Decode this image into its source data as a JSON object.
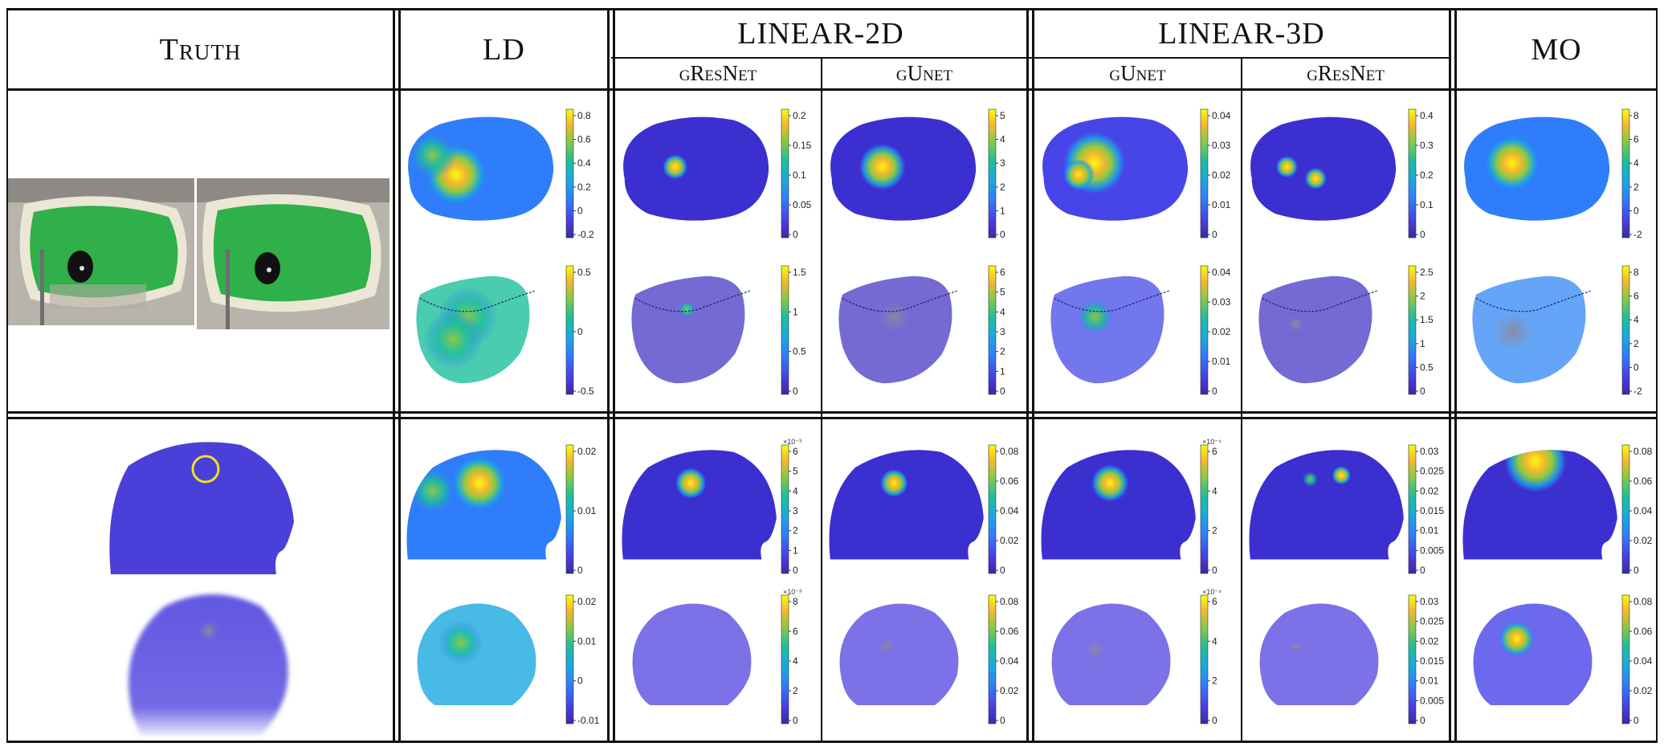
{
  "header": {
    "truth": "Truth",
    "ld": "LD",
    "linear2d": "LINEAR-2D",
    "linear3d": "LINEAR-3D",
    "mo": "MO",
    "sub_l2d_1": "gResNet",
    "sub_l2d_2": "gUnet",
    "sub_l3d_1": "gUnet",
    "sub_l3d_2": "gResNet"
  },
  "colors": {
    "cmap": [
      "#3e26a8",
      "#4744e8",
      "#2f7dfa",
      "#1aa9e0",
      "#1dbf9b",
      "#8bc944",
      "#f5b82d",
      "#f9fb0e"
    ],
    "background_blue": "#4a3fd8",
    "phantom_green": "#2fb04a",
    "target_ring": "#f2e21a"
  },
  "panels": [
    {
      "id": "r1a-ld",
      "ticks": [
        "0.8",
        "0.6",
        "0.4",
        "0.2",
        "0",
        "-0.2"
      ],
      "exp": ""
    },
    {
      "id": "r1b-ld",
      "ticks": [
        "0.5",
        "0",
        "-0.5"
      ],
      "exp": ""
    },
    {
      "id": "r1a-l2d-gresnet",
      "ticks": [
        "0.2",
        "0.15",
        "0.1",
        "0.05",
        "0"
      ],
      "exp": ""
    },
    {
      "id": "r1b-l2d-gresnet",
      "ticks": [
        "1.5",
        "1",
        "0.5",
        "0"
      ],
      "exp": ""
    },
    {
      "id": "r1a-l2d-gunet",
      "ticks": [
        "5",
        "4",
        "3",
        "2",
        "1",
        "0"
      ],
      "exp": ""
    },
    {
      "id": "r1b-l2d-gunet",
      "ticks": [
        "6",
        "5",
        "4",
        "3",
        "2",
        "1",
        "0"
      ],
      "exp": ""
    },
    {
      "id": "r1a-l3d-gunet",
      "ticks": [
        "0.04",
        "0.03",
        "0.02",
        "0.01",
        "0"
      ],
      "exp": ""
    },
    {
      "id": "r1b-l3d-gunet",
      "ticks": [
        "0.04",
        "0.03",
        "0.02",
        "0.01",
        "0"
      ],
      "exp": ""
    },
    {
      "id": "r1a-l3d-gresnet",
      "ticks": [
        "0.4",
        "0.3",
        "0.2",
        "0.1",
        "0"
      ],
      "exp": ""
    },
    {
      "id": "r1b-l3d-gresnet",
      "ticks": [
        "2.5",
        "2",
        "1.5",
        "1",
        "0.5",
        "0"
      ],
      "exp": ""
    },
    {
      "id": "r1a-mo",
      "ticks": [
        "8",
        "6",
        "4",
        "2",
        "0",
        "-2"
      ],
      "exp": ""
    },
    {
      "id": "r1b-mo",
      "ticks": [
        "8",
        "6",
        "4",
        "2",
        "0",
        "-2"
      ],
      "exp": ""
    },
    {
      "id": "r2a-ld",
      "ticks": [
        "0.02",
        "0.01",
        "0"
      ],
      "exp": ""
    },
    {
      "id": "r2b-ld",
      "ticks": [
        "0.02",
        "0.01",
        "0",
        "-0.01"
      ],
      "exp": ""
    },
    {
      "id": "r2a-l2d-gresnet",
      "ticks": [
        "6",
        "5",
        "4",
        "3",
        "2",
        "1",
        "0"
      ],
      "exp": "×10⁻³"
    },
    {
      "id": "r2b-l2d-gresnet",
      "ticks": [
        "8",
        "6",
        "4",
        "2",
        "0"
      ],
      "exp": "×10⁻³"
    },
    {
      "id": "r2a-l2d-gunet",
      "ticks": [
        "0.08",
        "0.06",
        "0.04",
        "0.02",
        "0"
      ],
      "exp": ""
    },
    {
      "id": "r2b-l2d-gunet",
      "ticks": [
        "0.08",
        "0.06",
        "0.04",
        "0.02",
        "0"
      ],
      "exp": ""
    },
    {
      "id": "r2a-l3d-gunet",
      "ticks": [
        "6",
        "4",
        "2",
        "0"
      ],
      "exp": "×10⁻⁴"
    },
    {
      "id": "r2b-l3d-gunet",
      "ticks": [
        "6",
        "4",
        "2",
        "0"
      ],
      "exp": "×10⁻⁴"
    },
    {
      "id": "r2a-l3d-gresnet",
      "ticks": [
        "0.03",
        "0.025",
        "0.02",
        "0.015",
        "0.01",
        "0.005",
        "0"
      ],
      "exp": ""
    },
    {
      "id": "r2b-l3d-gresnet",
      "ticks": [
        "0.03",
        "0.025",
        "0.02",
        "0.015",
        "0.01",
        "0.005",
        "0"
      ],
      "exp": ""
    },
    {
      "id": "r2a-mo",
      "ticks": [
        "0.08",
        "0.06",
        "0.04",
        "0.02",
        "0"
      ],
      "exp": ""
    },
    {
      "id": "r2b-mo",
      "ticks": [
        "0.08",
        "0.06",
        "0.04",
        "0.02",
        "0"
      ],
      "exp": ""
    }
  ]
}
